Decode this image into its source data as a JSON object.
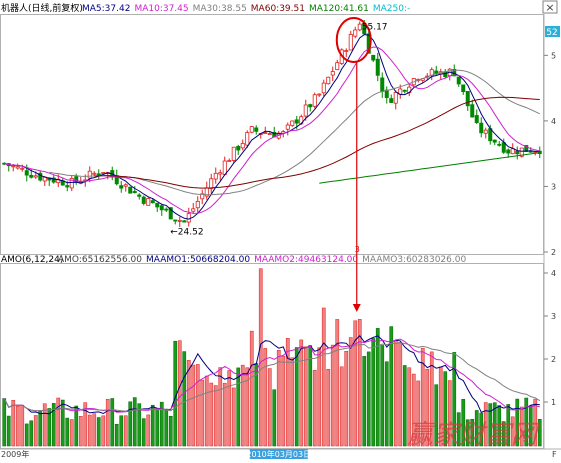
{
  "chart_data": [
    {
      "type": "candlestick",
      "name": "price-panel",
      "title": "机器人(日线,前复权)",
      "indicators": [
        {
          "label": "MA5",
          "value": "37.42",
          "color": "#000080"
        },
        {
          "label": "MA10",
          "value": "37.45",
          "color": "#d020d0"
        },
        {
          "label": "MA30",
          "value": "38.55",
          "color": "#808080"
        },
        {
          "label": "MA60",
          "value": "39.51",
          "color": "#800000"
        },
        {
          "label": "MA120",
          "value": "41.61",
          "color": "#008000"
        },
        {
          "label": "MA250",
          "value": "-",
          "color": "#00bcd4"
        }
      ],
      "ylim": [
        20,
        56
      ],
      "yticks": [
        "5",
        "4",
        "3",
        "2"
      ],
      "ytick_values": [
        50,
        40,
        30,
        20
      ],
      "current_price_label": "52",
      "annotations": [
        {
          "text": "55.17",
          "kind": "high",
          "index": 79,
          "value": 55.17
        },
        {
          "text": "←24.52",
          "kind": "low",
          "index": 40,
          "value": 24.52
        },
        {
          "text": "3",
          "kind": "marker",
          "index": 79
        }
      ],
      "grid": false
    },
    {
      "type": "bar",
      "name": "amo-panel",
      "title": "AMO(6,12,24)",
      "indicators": [
        {
          "label": "AMO",
          "value": "65162556.00",
          "color": "#404040"
        },
        {
          "label": "MAAMO1",
          "value": "50668204.00",
          "color": "#000080"
        },
        {
          "label": "MAAMO2",
          "value": "49463124.00",
          "color": "#d020d0"
        },
        {
          "label": "MAAMO3",
          "value": "60283026.00",
          "color": "#808080"
        }
      ],
      "yticks": [
        "4",
        "3",
        "2",
        "1"
      ],
      "xticks": [
        {
          "text": "2010年03月03日",
          "highlight": true,
          "index": 55
        },
        {
          "text": "2009年",
          "highlight": false,
          "index": 0
        }
      ],
      "grid": false
    }
  ],
  "watermark": "赢家财富网",
  "ui": {
    "close_box": "×",
    "corner_letter": "F"
  }
}
